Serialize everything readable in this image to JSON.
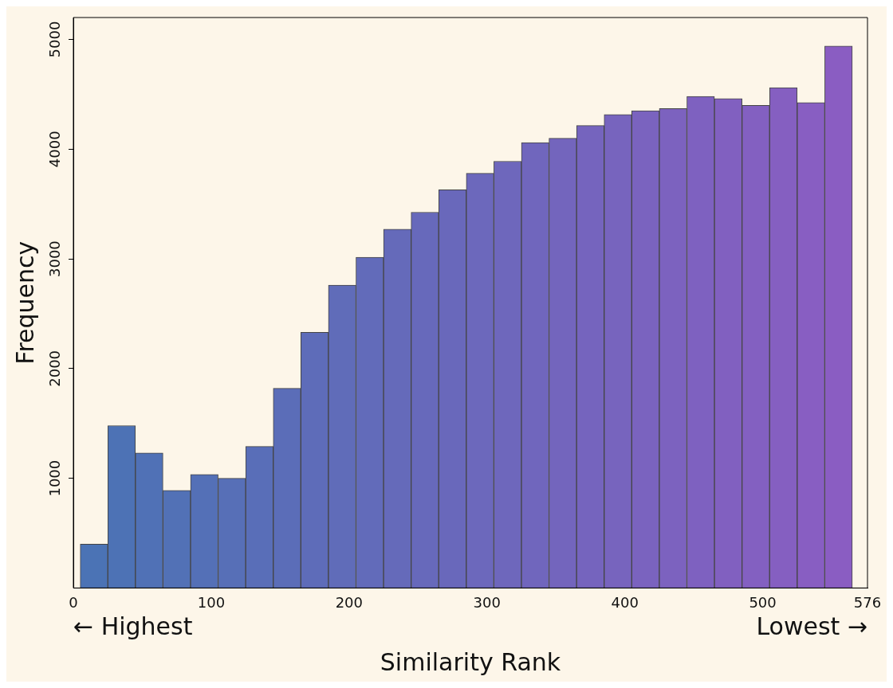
{
  "chart_data": {
    "type": "histogram",
    "xlabel": "Similarity Rank",
    "ylabel": "Frequency",
    "bins": [
      5,
      25,
      45,
      65,
      85,
      105,
      125,
      145,
      165,
      185,
      205,
      225,
      245,
      265,
      285,
      305,
      325,
      345,
      365,
      385,
      405,
      425,
      445,
      465,
      485,
      505,
      525,
      545,
      565
    ],
    "values": [
      400,
      1480,
      1230,
      890,
      1035,
      1000,
      1290,
      1820,
      2330,
      2760,
      3015,
      3270,
      3425,
      3630,
      3780,
      3890,
      4060,
      4100,
      4215,
      4315,
      4350,
      4370,
      4480,
      4460,
      4400,
      4560,
      4425,
      4940
    ],
    "colors": [
      "#4b73b5",
      "#4d72b5",
      "#5071b6",
      "#5271b6",
      "#5470b7",
      "#576fb7",
      "#596eb8",
      "#5b6db8",
      "#5e6cb9",
      "#606cb9",
      "#626bba",
      "#656aba",
      "#6769bb",
      "#6968bb",
      "#6c68bc",
      "#6e67bc",
      "#7066bd",
      "#7365bd",
      "#7564be",
      "#7764be",
      "#7a63bf",
      "#7c62bf",
      "#7e61c0",
      "#8160c0",
      "#8360c1",
      "#855fc1",
      "#885ec2",
      "#8a5dc2"
    ],
    "xlim": [
      0,
      576
    ],
    "xticks": [
      0,
      100,
      200,
      300,
      400,
      500,
      576
    ],
    "ylim": [
      0,
      5200
    ],
    "yticks": [
      1000,
      2000,
      3000,
      4000,
      5000
    ],
    "annotations": [
      "← Highest",
      "Lowest →"
    ],
    "grid": false,
    "legend": false
  }
}
